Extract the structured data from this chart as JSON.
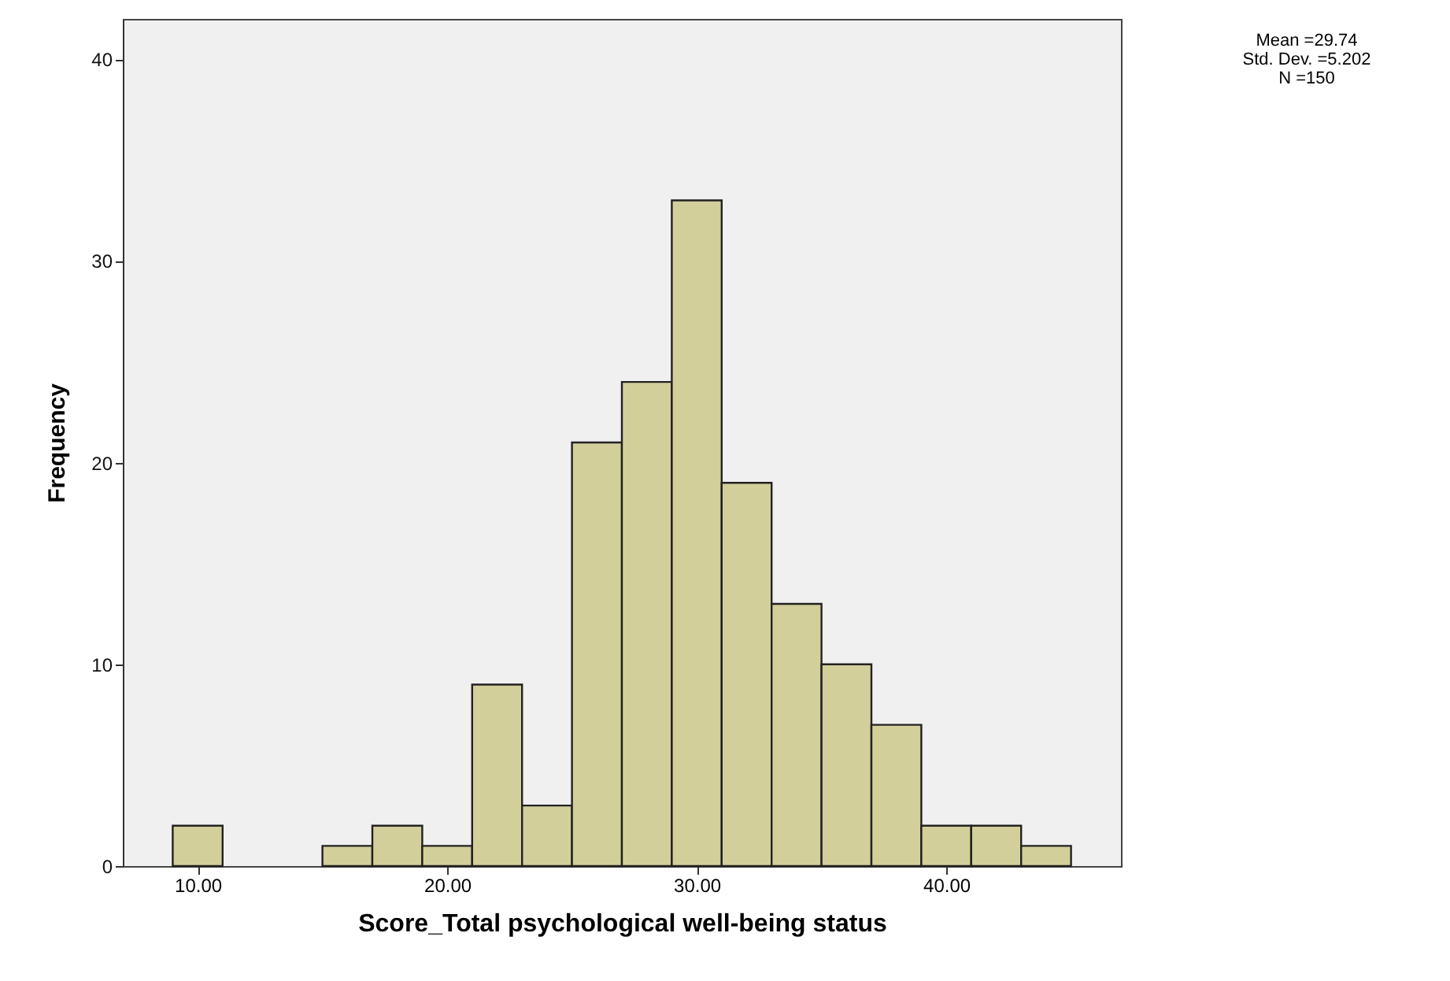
{
  "chart_data": {
    "type": "histogram",
    "xlabel": "Score_Total psychological well-being status",
    "ylabel": "Frequency",
    "annotations": [
      "Mean =29.74",
      "Std. Dev. =5.202",
      "N =150"
    ],
    "bins": [
      9,
      11,
      13,
      15,
      17,
      19,
      21,
      23,
      25,
      27,
      29,
      31,
      33,
      35,
      37,
      39,
      41,
      43,
      45
    ],
    "values": [
      2,
      0,
      0,
      1,
      2,
      1,
      9,
      3,
      21,
      24,
      33,
      19,
      13,
      10,
      7,
      2,
      2,
      1
    ],
    "color": "#d3cf9b",
    "xlim": [
      7,
      47
    ],
    "xticks": [
      {
        "value": 10,
        "label": "10.00"
      },
      {
        "value": 20,
        "label": "20.00"
      },
      {
        "value": 30,
        "label": "30.00"
      },
      {
        "value": 40,
        "label": "40.00"
      }
    ],
    "ylim": [
      0,
      42
    ],
    "yticks": [
      0,
      10,
      20,
      30,
      40
    ]
  }
}
